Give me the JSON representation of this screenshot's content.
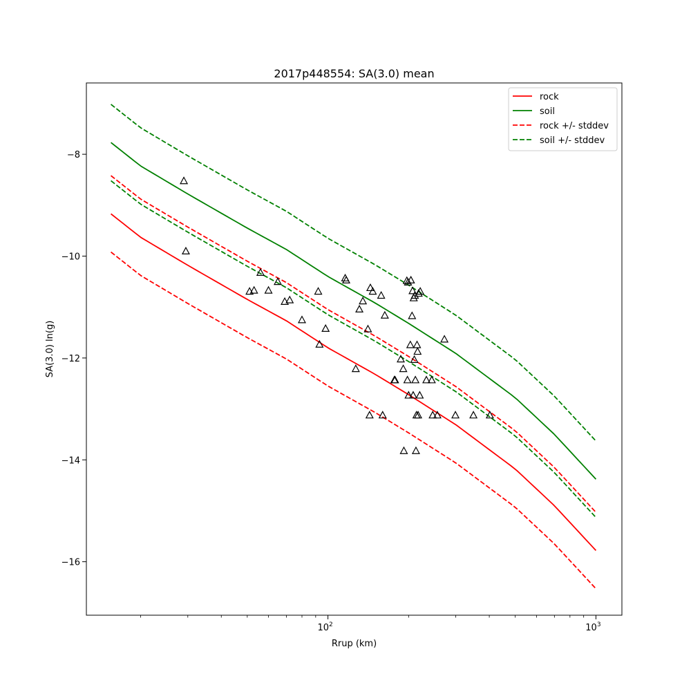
{
  "chart_data": {
    "type": "line",
    "title": "2017p448554: SA(3.0) mean",
    "xlabel": "Rrup (km)",
    "ylabel": "SA(3.0) ln(g)",
    "xscale": "log",
    "xlim": [
      12.55,
      1250
    ],
    "ylim": [
      -17.05,
      -6.6
    ],
    "x_ticks": [
      {
        "value": 100,
        "base": "10",
        "exp": "2"
      },
      {
        "value": 1000,
        "base": "10",
        "exp": "3"
      }
    ],
    "y_ticks": [
      {
        "value": -16,
        "label": "−16"
      },
      {
        "value": -14,
        "label": "−14"
      },
      {
        "value": -12,
        "label": "−12"
      },
      {
        "value": -10,
        "label": "−10"
      },
      {
        "value": -8,
        "label": "−8"
      }
    ],
    "grid": false,
    "legend_position": "top-right",
    "series": [
      {
        "name": "rock",
        "color": "#ff0000",
        "dash": "solid",
        "x": [
          15.5,
          20,
          30,
          50,
          70,
          100,
          150,
          200,
          300,
          500,
          700,
          1000
        ],
        "y": [
          -9.17,
          -9.63,
          -10.18,
          -10.85,
          -11.27,
          -11.8,
          -12.32,
          -12.72,
          -13.31,
          -14.18,
          -14.9,
          -15.78
        ]
      },
      {
        "name": "soil",
        "color": "#008000",
        "dash": "solid",
        "x": [
          15.5,
          20,
          30,
          50,
          70,
          100,
          150,
          200,
          300,
          500,
          700,
          1000
        ],
        "y": [
          -7.77,
          -8.23,
          -8.78,
          -9.45,
          -9.87,
          -10.4,
          -10.92,
          -11.32,
          -11.91,
          -12.78,
          -13.5,
          -14.38
        ]
      },
      {
        "name": "rock +/- stddev",
        "color": "#ff0000",
        "dash": "dashed",
        "x": [
          15.5,
          20,
          30,
          50,
          70,
          100,
          150,
          200,
          300,
          500,
          700,
          1000
        ],
        "y": [
          -8.42,
          -8.88,
          -9.43,
          -10.1,
          -10.52,
          -11.05,
          -11.57,
          -11.97,
          -12.56,
          -13.43,
          -14.15,
          -15.03
        ]
      },
      {
        "name": "rock +/- stddev (lower)",
        "color": "#ff0000",
        "dash": "dashed",
        "x": [
          15.5,
          20,
          30,
          50,
          70,
          100,
          150,
          200,
          300,
          500,
          700,
          1000
        ],
        "y": [
          -9.92,
          -10.38,
          -10.93,
          -11.6,
          -12.02,
          -12.55,
          -13.07,
          -13.47,
          -14.06,
          -14.93,
          -15.65,
          -16.53
        ]
      },
      {
        "name": "soil +/- stddev",
        "color": "#008000",
        "dash": "dashed",
        "x": [
          15.5,
          20,
          30,
          50,
          70,
          100,
          150,
          200,
          300,
          500,
          700,
          1000
        ],
        "y": [
          -7.02,
          -7.48,
          -8.03,
          -8.7,
          -9.12,
          -9.65,
          -10.17,
          -10.57,
          -11.16,
          -12.03,
          -12.75,
          -13.63
        ]
      },
      {
        "name": "soil +/- stddev (lower)",
        "color": "#008000",
        "dash": "dashed",
        "x": [
          15.5,
          20,
          30,
          50,
          70,
          100,
          150,
          200,
          300,
          500,
          700,
          1000
        ],
        "y": [
          -8.52,
          -8.98,
          -9.53,
          -10.2,
          -10.62,
          -11.15,
          -11.67,
          -12.07,
          -12.66,
          -13.53,
          -14.25,
          -15.13
        ]
      }
    ],
    "legend": [
      {
        "label": "rock",
        "color": "#ff0000",
        "dash": "solid"
      },
      {
        "label": "soil",
        "color": "#008000",
        "dash": "solid"
      },
      {
        "label": "rock +/- stddev",
        "color": "#ff0000",
        "dash": "dashed"
      },
      {
        "label": "soil +/- stddev",
        "color": "#008000",
        "dash": "dashed"
      }
    ],
    "observations": {
      "marker": "triangle-open",
      "color": "#000000",
      "points": [
        [
          29,
          -8.52
        ],
        [
          29.5,
          -9.9
        ],
        [
          51,
          -10.69
        ],
        [
          53,
          -10.67
        ],
        [
          56,
          -10.32
        ],
        [
          60,
          -10.67
        ],
        [
          65,
          -10.5
        ],
        [
          69,
          -10.89
        ],
        [
          72,
          -10.86
        ],
        [
          80,
          -11.25
        ],
        [
          92,
          -10.69
        ],
        [
          93,
          -11.73
        ],
        [
          98,
          -11.42
        ],
        [
          116,
          -10.43
        ],
        [
          117,
          -10.47
        ],
        [
          127,
          -12.21
        ],
        [
          131,
          -11.04
        ],
        [
          135,
          -10.88
        ],
        [
          141,
          -11.43
        ],
        [
          143,
          -13.12
        ],
        [
          144,
          -10.62
        ],
        [
          147,
          -10.69
        ],
        [
          158,
          -10.77
        ],
        [
          160,
          -13.12
        ],
        [
          163,
          -11.16
        ],
        [
          177,
          -12.43
        ],
        [
          178,
          -12.43
        ],
        [
          187,
          -12.02
        ],
        [
          191,
          -12.21
        ],
        [
          192,
          -13.82
        ],
        [
          197,
          -10.48
        ],
        [
          198,
          -12.43
        ],
        [
          199,
          -10.51
        ],
        [
          200,
          -12.73
        ],
        [
          203,
          -11.74
        ],
        [
          204,
          -10.47
        ],
        [
          206,
          -11.17
        ],
        [
          207,
          -10.68
        ],
        [
          208,
          -12.73
        ],
        [
          209,
          -10.82
        ],
        [
          210,
          -12.03
        ],
        [
          211,
          -10.77
        ],
        [
          212,
          -12.43
        ],
        [
          213,
          -13.82
        ],
        [
          214,
          -13.12
        ],
        [
          215,
          -11.74
        ],
        [
          216,
          -11.87
        ],
        [
          217,
          -13.12
        ],
        [
          218,
          -10.73
        ],
        [
          220,
          -12.73
        ],
        [
          221,
          -10.69
        ],
        [
          233,
          -12.43
        ],
        [
          244,
          -12.43
        ],
        [
          246,
          -13.12
        ],
        [
          256,
          -13.12
        ],
        [
          272,
          -11.63
        ],
        [
          299,
          -13.12
        ],
        [
          349,
          -13.12
        ],
        [
          402,
          -13.12
        ]
      ]
    }
  }
}
